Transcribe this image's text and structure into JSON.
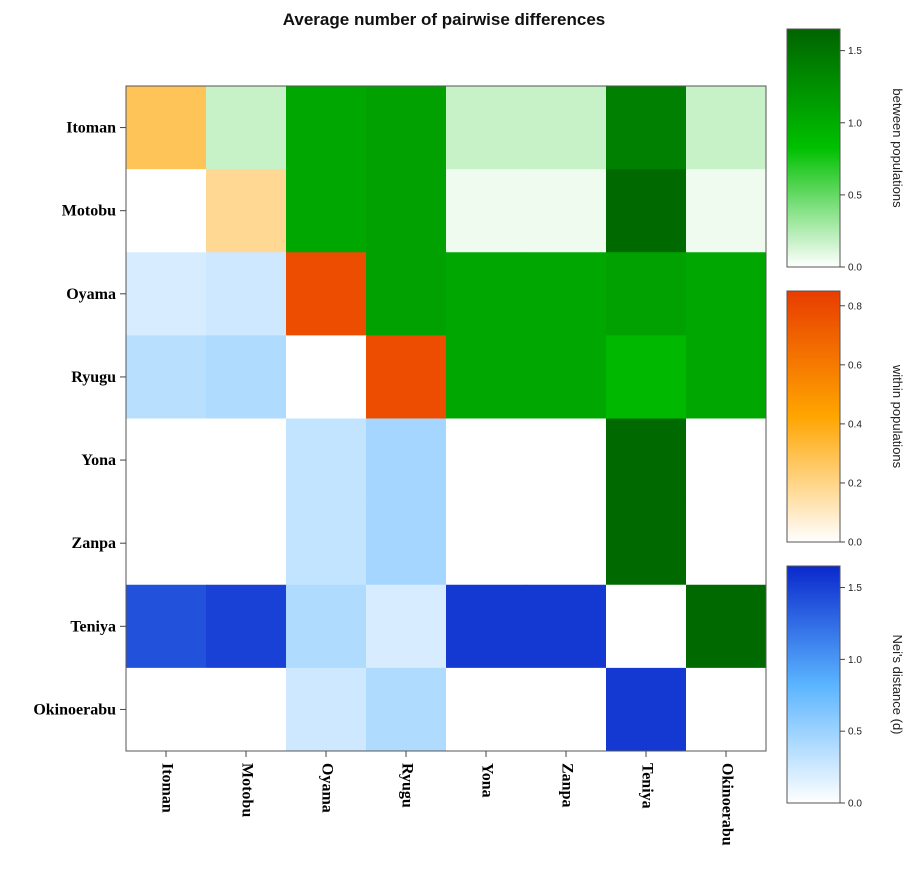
{
  "chart_data": {
    "type": "heatmap",
    "title": "Average number of pairwise differences",
    "rows": [
      "Itoman",
      "Motobu",
      "Oyama",
      "Ryugu",
      "Yona",
      "Zanpa",
      "Teniya",
      "Okinoerabu"
    ],
    "columns": [
      "Itoman",
      "Motobu",
      "Oyama",
      "Ryugu",
      "Yona",
      "Zanpa",
      "Teniya",
      "Okinoerabu"
    ],
    "layout_note_cells": "matrix[row][col]: diagonal = within populations, upper triangle = between populations, lower triangle = Nei's distance (d)",
    "matrix": [
      [
        0.28,
        0.18,
        1.05,
        1.1,
        0.18,
        0.18,
        1.4,
        0.18
      ],
      [
        0.0,
        0.18,
        1.05,
        1.1,
        0.05,
        0.05,
        1.6,
        0.05
      ],
      [
        0.2,
        0.25,
        0.78,
        1.1,
        1.05,
        1.05,
        1.1,
        1.05
      ],
      [
        0.35,
        0.4,
        0.0,
        0.78,
        1.05,
        1.05,
        0.9,
        1.05
      ],
      [
        0.0,
        0.0,
        0.3,
        0.45,
        0.0,
        0.0,
        1.6,
        0.0
      ],
      [
        0.0,
        0.0,
        0.3,
        0.45,
        0.0,
        0.0,
        1.6,
        0.0
      ],
      [
        1.4,
        1.5,
        0.4,
        0.2,
        1.55,
        1.55,
        0.0,
        1.6
      ],
      [
        0.0,
        0.0,
        0.25,
        0.4,
        0.0,
        0.0,
        1.55,
        0.0
      ]
    ],
    "colorbars": [
      {
        "label": "between populations",
        "range": [
          0,
          1.65
        ],
        "ticks": [
          "0.0",
          "0.5",
          "1.0",
          "1.5"
        ],
        "tick_values": [
          0,
          0.5,
          1.0,
          1.5
        ],
        "colors": [
          "#ffffff",
          "#00c000",
          "#006400"
        ]
      },
      {
        "label": "within populations",
        "range": [
          0,
          0.85
        ],
        "ticks": [
          "0.0",
          "0.2",
          "0.4",
          "0.6",
          "0.8"
        ],
        "tick_values": [
          0,
          0.2,
          0.4,
          0.6,
          0.8
        ],
        "colors": [
          "#ffffff",
          "#ffa500",
          "#e83c00"
        ]
      },
      {
        "label": "Nei's distance (d)",
        "range": [
          0,
          1.65
        ],
        "ticks": [
          "0.0",
          "0.5",
          "1.0",
          "1.5"
        ],
        "tick_values": [
          0,
          0.5,
          1.0,
          1.5
        ],
        "colors": [
          "#ffffff",
          "#5ab4ff",
          "#0a28cc"
        ]
      }
    ]
  }
}
